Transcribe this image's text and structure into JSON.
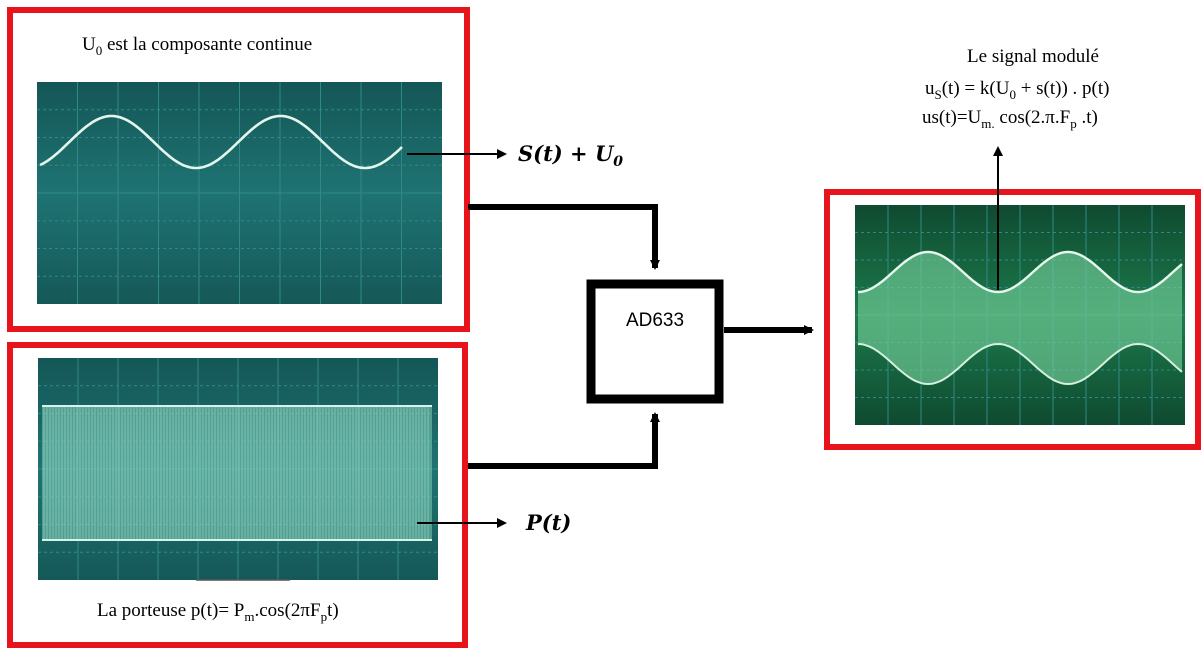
{
  "signal_panel": {
    "caption": {
      "main": "U",
      "sub": "0",
      "rest": " est la composante continue"
    },
    "output_label": {
      "s": "S",
      "t_paren": "(t)",
      "plus": " + ",
      "u": "U",
      "sub": "0"
    }
  },
  "carrier_panel": {
    "caption": {
      "lead": "La porteuse  p(t)= P",
      "sub_m": "m",
      "mid": ".cos(2πF",
      "sub_p": "p",
      "tail": "t)"
    },
    "output_label": {
      "p": "P",
      "t_paren": "(t)"
    }
  },
  "multiplier": {
    "label": "AD633"
  },
  "modulated_panel": {
    "title": "Le signal modulé",
    "eq1": {
      "a": "u",
      "a_sub": "S",
      "b": "(t) = k(U",
      "b_sub": "0",
      "c": " + s(t)) . p(t)"
    },
    "eq2": {
      "a": "us(t)=U",
      "a_sub": "m.",
      "b": " cos(2.π.F",
      "b_sub": "p",
      "c": " .t)"
    }
  },
  "colors": {
    "frame": "#e8141c",
    "screen": "#1a6a6a",
    "screen_dark": "#0c2a30",
    "grid": "#3a8a8a",
    "trace": "#d8f2e6",
    "carrier_fill": "#7fcfb8",
    "modulated_screen": "#177047",
    "modulated_fill": "#79d39f",
    "arrow": "#000000"
  },
  "icons": [
    "arrow-right-icon",
    "arrow-up-icon",
    "arrow-down-icon"
  ]
}
